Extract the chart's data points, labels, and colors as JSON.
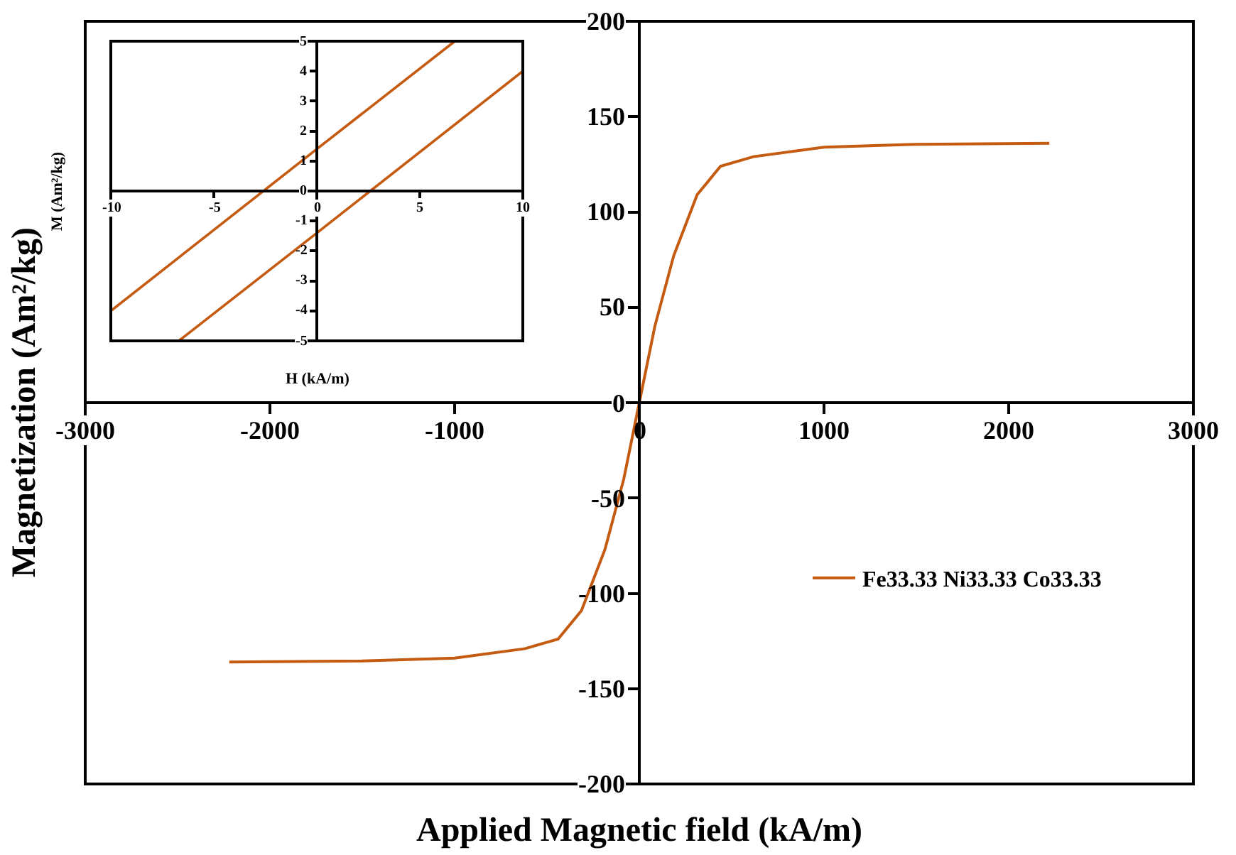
{
  "chart_data": [
    {
      "type": "line",
      "xlabel": "Applied Magnetic field (kA/m)",
      "ylabel": "Magnetization (Am²/kg)",
      "x": [
        -2220,
        -1500,
        -1000,
        -618,
        -440,
        -313,
        -186,
        -84,
        0,
        84,
        186,
        313,
        440,
        618,
        1000,
        1500,
        2220
      ],
      "series": [
        {
          "name": "Fe33.33 Ni33.33 Co33.33",
          "color": "#c55a11",
          "values": [
            -136,
            -135.5,
            -134,
            -129,
            -124,
            -109,
            -77,
            -40,
            0,
            40,
            77,
            109,
            124,
            129,
            134,
            135.5,
            136
          ]
        }
      ],
      "xlim": [
        -3000,
        3000
      ],
      "xticks": [
        -3000,
        -2000,
        -1000,
        0,
        1000,
        2000,
        3000
      ],
      "ylim": [
        -200,
        200
      ],
      "yticks": [
        -200,
        -150,
        -100,
        -50,
        0,
        50,
        100,
        150,
        200
      ],
      "grid": false,
      "legend": "right",
      "marker": "none",
      "line_style": "solid"
    },
    {
      "type": "line",
      "xlabel": "H (kA/m)",
      "ylabel": "M (Am²/kg)",
      "series": [
        {
          "color": "#c55a11",
          "x": [
            -10,
            0,
            6.7
          ],
          "values": [
            -4,
            1.4,
            5
          ]
        },
        {
          "color": "#c55a11",
          "x": [
            -6.7,
            0,
            10
          ],
          "values": [
            -5,
            -1.4,
            4
          ]
        }
      ],
      "xlim": [
        -10,
        10
      ],
      "xticks": [
        -10,
        -5,
        0,
        5,
        10
      ],
      "ylim": [
        -5,
        5
      ],
      "yticks": [
        -5,
        -4,
        -3,
        -2,
        -1,
        0,
        1,
        2,
        3,
        4,
        5
      ],
      "grid": false,
      "legend": false,
      "marker": "none",
      "line_style": "solid"
    }
  ]
}
